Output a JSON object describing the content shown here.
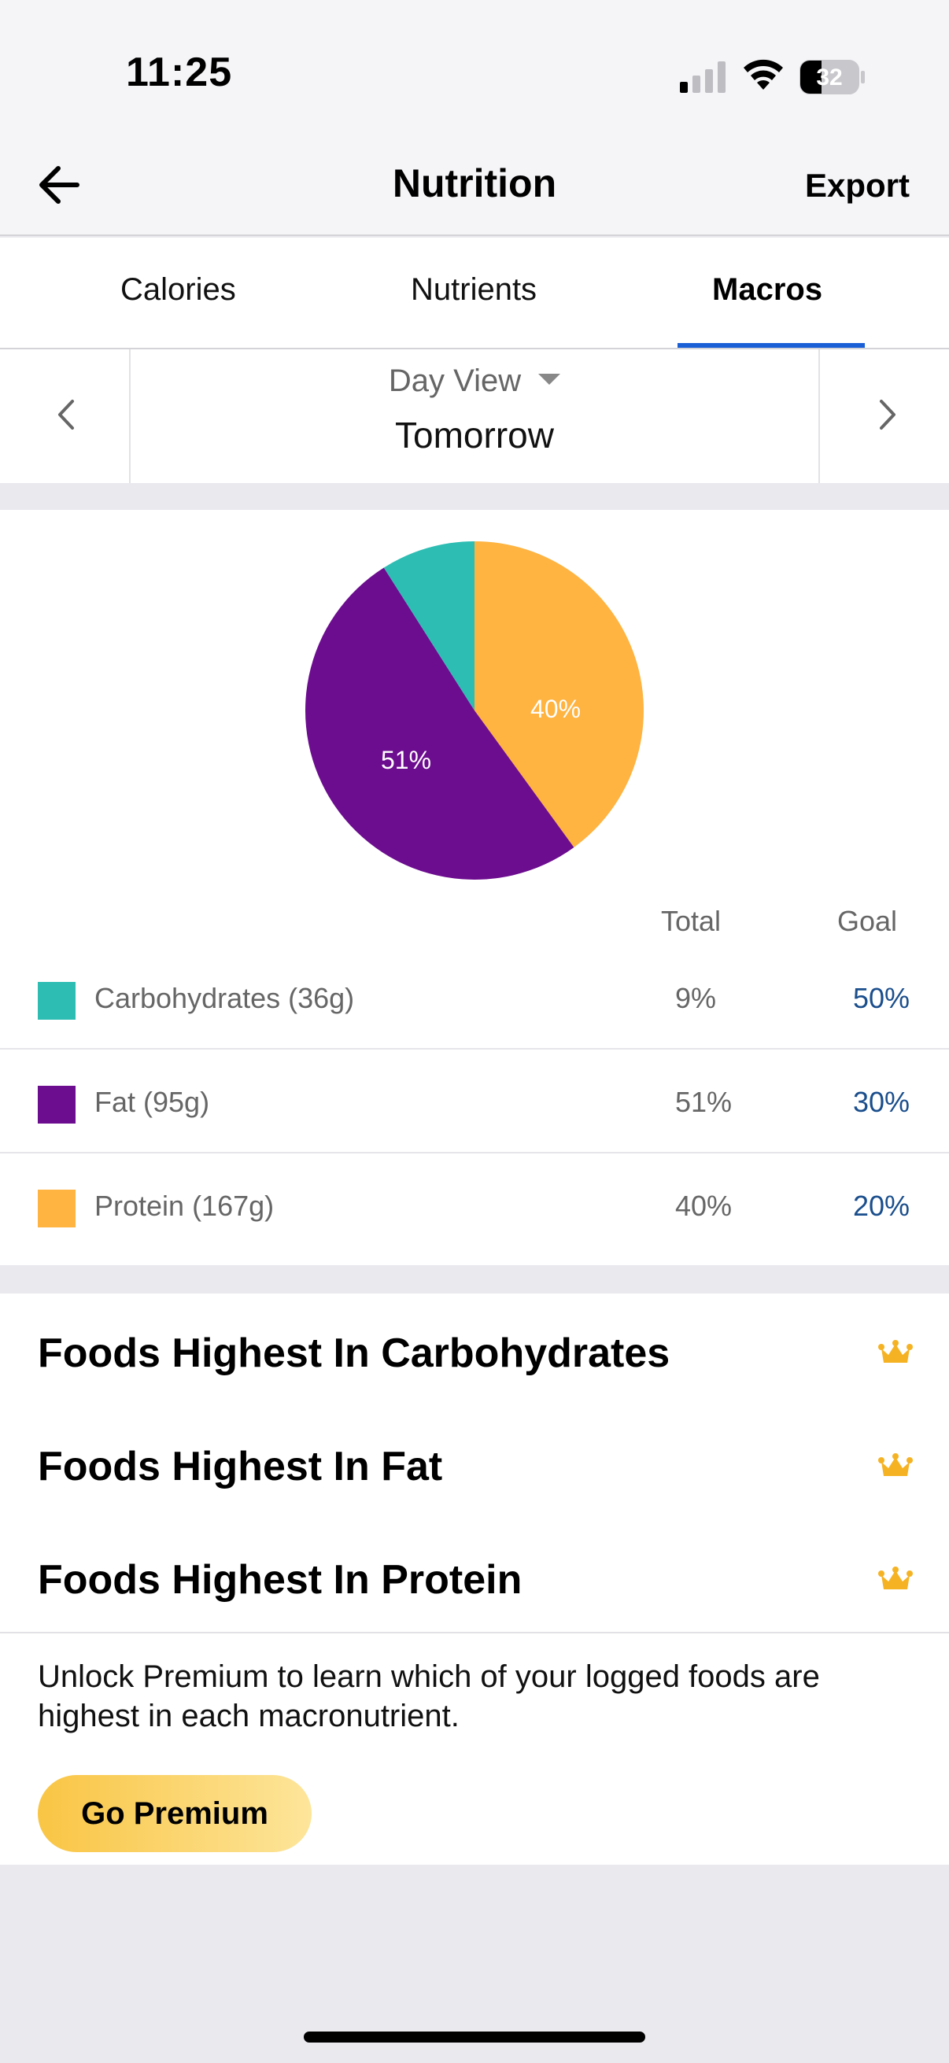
{
  "status_bar": {
    "time": "11:25",
    "battery": "32"
  },
  "nav": {
    "title": "Nutrition",
    "export_label": "Export"
  },
  "tabs": [
    {
      "label": "Calories",
      "active": false
    },
    {
      "label": "Nutrients",
      "active": false
    },
    {
      "label": "Macros",
      "active": true
    }
  ],
  "date_selector": {
    "view_label": "Day View",
    "date_label": "Tomorrow"
  },
  "macros": {
    "columns": {
      "total": "Total",
      "goal": "Goal"
    },
    "rows": [
      {
        "label": "Carbohydrates (36g)",
        "total": "9%",
        "goal": "50%",
        "color": "#2dbdb3",
        "share": 9
      },
      {
        "label": "Fat (95g)",
        "total": "51%",
        "goal": "30%",
        "color": "#6c0c8f",
        "share": 51
      },
      {
        "label": "Protein (167g)",
        "total": "40%",
        "goal": "20%",
        "color": "#ffb340",
        "share": 40
      }
    ],
    "pie_labels": {
      "fat": "51%",
      "protein": "40%"
    }
  },
  "foods": {
    "items": [
      {
        "title": "Foods Highest In Carbohydrates",
        "icon": "crown-icon"
      },
      {
        "title": "Foods Highest In Fat",
        "icon": "crown-icon"
      },
      {
        "title": "Foods Highest In Protein",
        "icon": "crown-icon"
      }
    ],
    "premium_text": "Unlock Premium to learn which of your logged foods are highest in each macronutrient.",
    "premium_button": "Go Premium"
  },
  "colors": {
    "accent": "#1a5fd6",
    "goal_text": "#1a4e8c",
    "crown": "#f5b324"
  }
}
